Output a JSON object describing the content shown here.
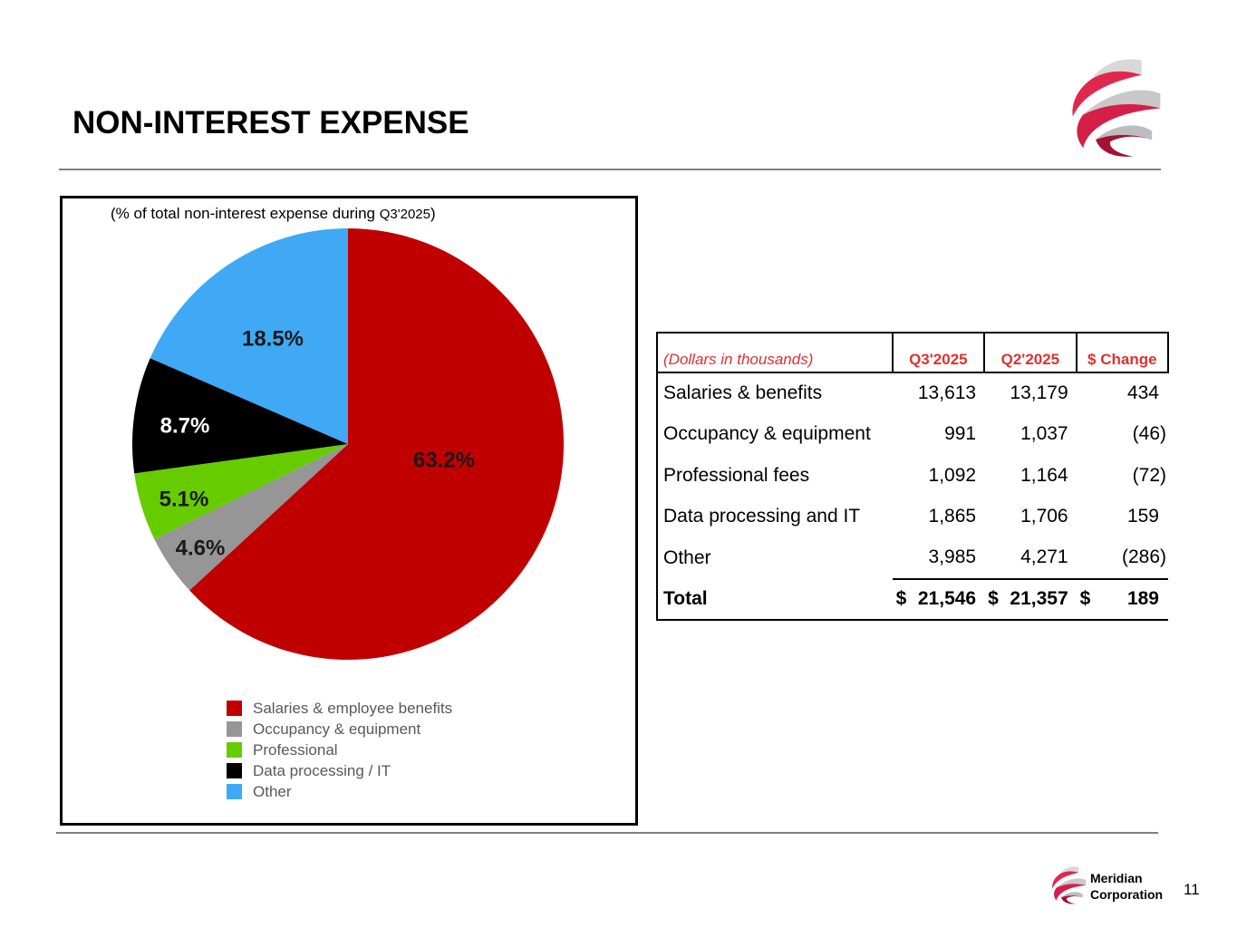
{
  "header": {
    "title": "NON-INTEREST EXPENSE"
  },
  "chart_data": {
    "type": "pie",
    "title": "(% of total non-interest expense during ",
    "title_period": "Q3'2025",
    "title_close": ")",
    "categories": [
      "Salaries & employee benefits",
      "Occupancy & equipment",
      "Professional",
      "Data processing / IT",
      "Other"
    ],
    "values": [
      63.2,
      4.6,
      5.1,
      8.7,
      18.5
    ],
    "labels": [
      "63.2%",
      "4.6%",
      "5.1%",
      "8.7%",
      "18.5%"
    ],
    "colors": [
      "#c00000",
      "#969696",
      "#66cc00",
      "#000000",
      "#3fa9f5"
    ],
    "start_angle": "12 o'clock",
    "direction": "clockwise",
    "legend_position": "bottom-center"
  },
  "table": {
    "unit_label": "(Dollars in thousands)",
    "columns": [
      "Q3'2025",
      "Q2'2025",
      "$ Change"
    ],
    "rows": [
      {
        "label": "Salaries & benefits",
        "q3": "13,613",
        "q2": "13,179",
        "change": "434"
      },
      {
        "label": "Occupancy & equipment",
        "q3": "991",
        "q2": "1,037",
        "change": "(46)"
      },
      {
        "label": "Professional fees",
        "q3": "1,092",
        "q2": "1,164",
        "change": "(72)"
      },
      {
        "label": "Data processing and IT",
        "q3": "1,865",
        "q2": "1,706",
        "change": "159"
      },
      {
        "label": "Other",
        "q3": "3,985",
        "q2": "4,271",
        "change": "(286)"
      }
    ],
    "total": {
      "label": "Total",
      "currency": "$",
      "q3": "21,546",
      "q2": "21,357",
      "change": "189"
    }
  },
  "footer": {
    "company_line1": "Meridian",
    "company_line2": "Corporation",
    "page_number": "11"
  },
  "brand": {
    "accent": "#e0284f",
    "dark_accent": "#9c1030"
  }
}
